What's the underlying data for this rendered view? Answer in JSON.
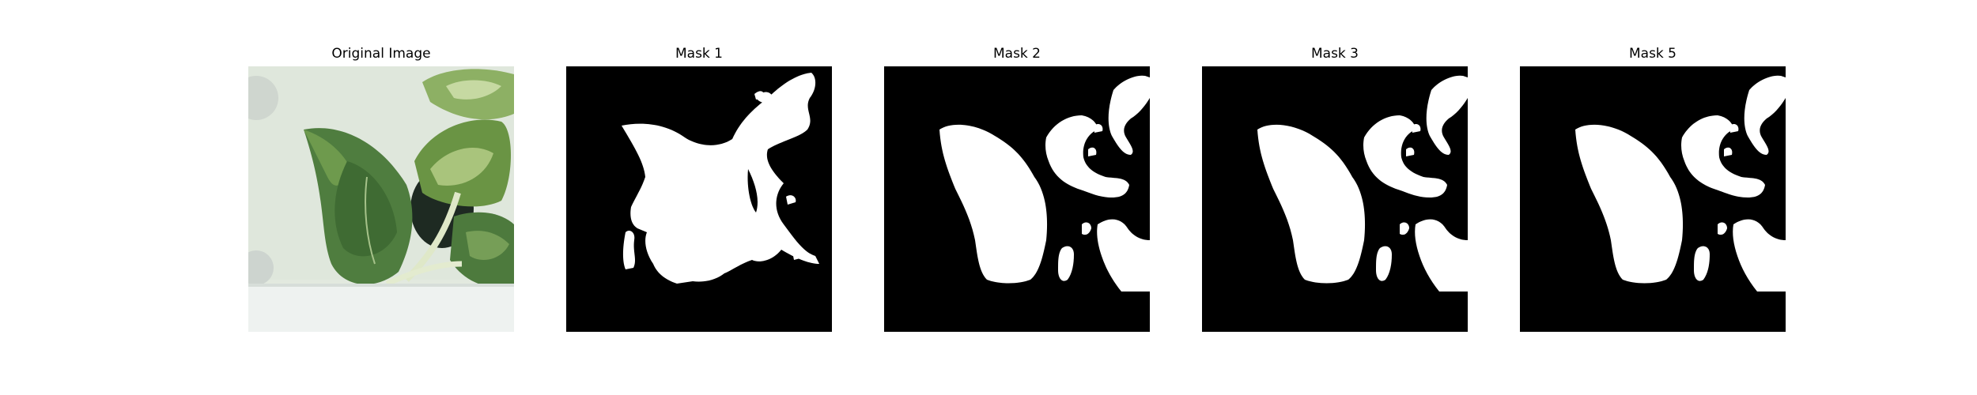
{
  "panels": [
    {
      "title": "Original Image"
    },
    {
      "title": "Mask 1"
    },
    {
      "title": "Mask 2"
    },
    {
      "title": "Mask 3"
    },
    {
      "title": "Mask 5"
    }
  ],
  "colors": {
    "mask_background": "#000000",
    "mask_foreground": "#ffffff",
    "photo_background": "#e4ebe2",
    "leaf_dark": "#4b7a3c",
    "leaf_light": "#8fb46a",
    "shelf": "#eef2f0"
  }
}
